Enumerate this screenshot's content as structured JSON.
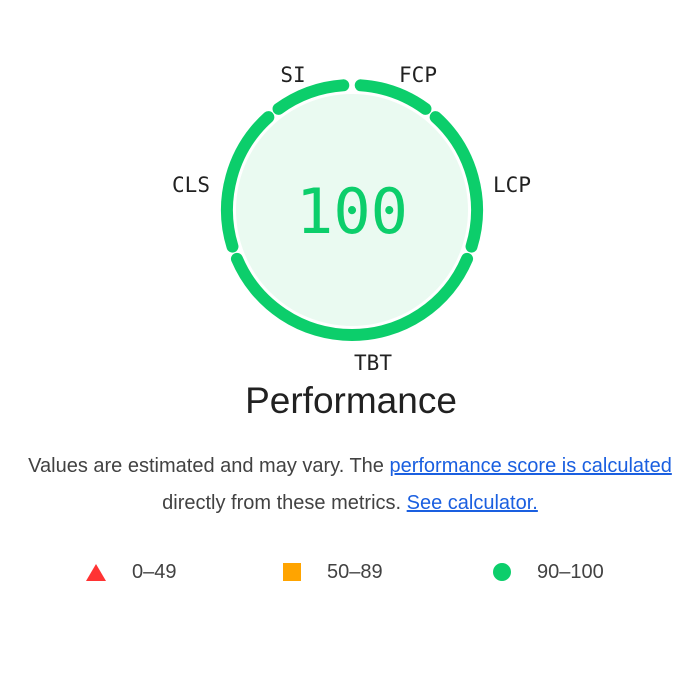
{
  "gauge": {
    "score": "100",
    "title": "Performance",
    "metrics": {
      "si": "SI",
      "fcp": "FCP",
      "lcp": "LCP",
      "tbt": "TBT",
      "cls": "CLS"
    },
    "colors": {
      "ring": "#0cce6b",
      "fill": "#eafaf1",
      "score": "#0cce6b"
    }
  },
  "description": {
    "text_before": "Values are estimated and may vary. The ",
    "score_link": "performance score is calculated",
    "text_middle": " directly from these metrics. ",
    "calculator_link": "See calculator."
  },
  "legend": {
    "fail": {
      "range": "0–49",
      "color": "#ff3333",
      "icon": "triangle-icon"
    },
    "average": {
      "range": "50–89",
      "color": "#ffa400",
      "icon": "square-icon"
    },
    "pass": {
      "range": "90–100",
      "color": "#0cce6b",
      "icon": "circle-icon"
    }
  }
}
